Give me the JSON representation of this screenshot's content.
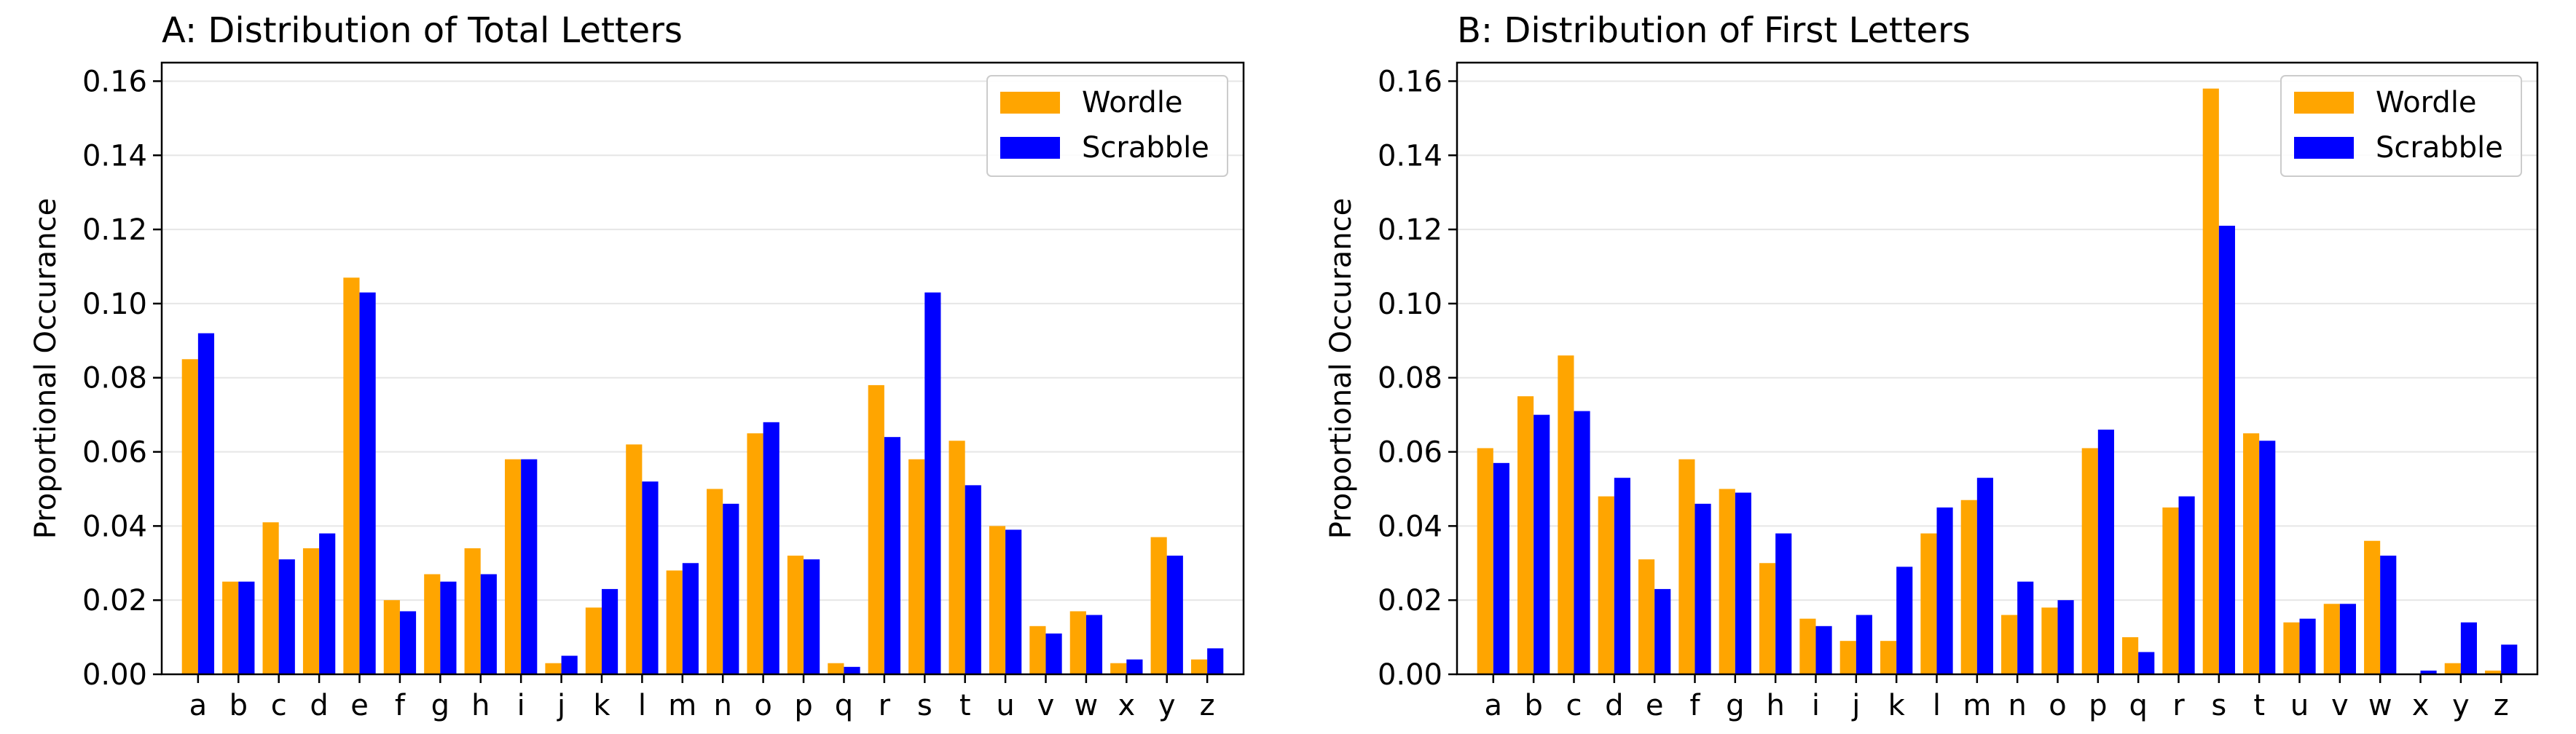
{
  "chart_data": [
    {
      "type": "bar",
      "title": "A: Distribution of Total Letters",
      "xlabel": "",
      "ylabel": "Proportional Occurance",
      "ylim": [
        0,
        0.165
      ],
      "yticks": [
        "0.00",
        "0.02",
        "0.04",
        "0.06",
        "0.08",
        "0.10",
        "0.12",
        "0.14",
        "0.16"
      ],
      "grid": "horizontal",
      "legend_position": "top-right",
      "categories": [
        "a",
        "b",
        "c",
        "d",
        "e",
        "f",
        "g",
        "h",
        "i",
        "j",
        "k",
        "l",
        "m",
        "n",
        "o",
        "p",
        "q",
        "r",
        "s",
        "t",
        "u",
        "v",
        "w",
        "x",
        "y",
        "z"
      ],
      "series": [
        {
          "name": "Wordle",
          "color": "#ffa500",
          "values": [
            0.085,
            0.025,
            0.041,
            0.034,
            0.107,
            0.02,
            0.027,
            0.034,
            0.058,
            0.003,
            0.018,
            0.062,
            0.028,
            0.05,
            0.065,
            0.032,
            0.003,
            0.078,
            0.058,
            0.063,
            0.04,
            0.013,
            0.017,
            0.003,
            0.037,
            0.004
          ]
        },
        {
          "name": "Scrabble",
          "color": "#0000ff",
          "values": [
            0.092,
            0.025,
            0.031,
            0.038,
            0.103,
            0.017,
            0.025,
            0.027,
            0.058,
            0.005,
            0.023,
            0.052,
            0.03,
            0.046,
            0.068,
            0.031,
            0.002,
            0.064,
            0.103,
            0.051,
            0.039,
            0.011,
            0.016,
            0.004,
            0.032,
            0.007
          ]
        }
      ]
    },
    {
      "type": "bar",
      "title": "B: Distribution of First Letters",
      "xlabel": "",
      "ylabel": "Proportional Occurance",
      "ylim": [
        0,
        0.165
      ],
      "yticks": [
        "0.00",
        "0.02",
        "0.04",
        "0.06",
        "0.08",
        "0.10",
        "0.12",
        "0.14",
        "0.16"
      ],
      "grid": "horizontal",
      "legend_position": "top-right",
      "categories": [
        "a",
        "b",
        "c",
        "d",
        "e",
        "f",
        "g",
        "h",
        "i",
        "j",
        "k",
        "l",
        "m",
        "n",
        "o",
        "p",
        "q",
        "r",
        "s",
        "t",
        "u",
        "v",
        "w",
        "x",
        "y",
        "z"
      ],
      "series": [
        {
          "name": "Wordle",
          "color": "#ffa500",
          "values": [
            0.061,
            0.075,
            0.086,
            0.048,
            0.031,
            0.058,
            0.05,
            0.03,
            0.015,
            0.009,
            0.009,
            0.038,
            0.047,
            0.016,
            0.018,
            0.061,
            0.01,
            0.045,
            0.158,
            0.065,
            0.014,
            0.019,
            0.036,
            0.0,
            0.003,
            0.001
          ]
        },
        {
          "name": "Scrabble",
          "color": "#0000ff",
          "values": [
            0.057,
            0.07,
            0.071,
            0.053,
            0.023,
            0.046,
            0.049,
            0.038,
            0.013,
            0.016,
            0.029,
            0.045,
            0.053,
            0.025,
            0.02,
            0.066,
            0.006,
            0.048,
            0.121,
            0.063,
            0.015,
            0.019,
            0.032,
            0.001,
            0.014,
            0.008
          ]
        }
      ]
    }
  ]
}
